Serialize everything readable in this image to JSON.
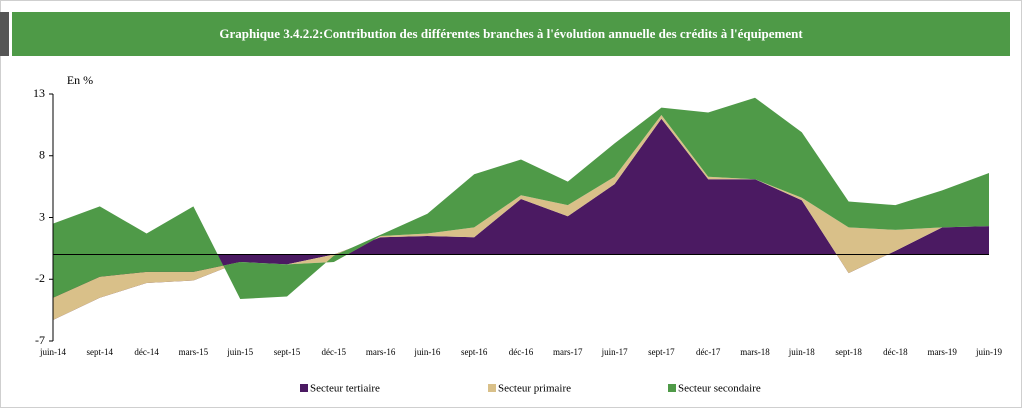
{
  "chart_data": {
    "type": "stacked_area",
    "title": "Graphique 3.4.2.2:Contribution des différentes branches à l'évolution  annuelle des crédits à l'équipement",
    "y_label": "En %",
    "categories": [
      "juin-14",
      "sept-14",
      "déc-14",
      "mars-15",
      "juin-15",
      "sept-15",
      "déc-15",
      "mars-16",
      "juin-16",
      "sept-16",
      "déc-16",
      "mars-17",
      "juin-17",
      "sept-17",
      "déc-17",
      "mars-18",
      "juin-18",
      "sept-18",
      "déc-18",
      "mars-19",
      "juin-19"
    ],
    "series": [
      {
        "name": "Secteur tertiaire",
        "color": "#4b1a62",
        "values": [
          -5.3,
          -3.5,
          -2.3,
          -2.1,
          -0.6,
          -0.8,
          0,
          1.4,
          1.5,
          1.4,
          4.5,
          3.1,
          5.7,
          11.0,
          6.1,
          6.1,
          4.4,
          -1.5,
          0.3,
          2.2,
          2.3
        ]
      },
      {
        "name": "Secteur primaire",
        "color": "#d9c089",
        "values": [
          1.8,
          1.7,
          0.9,
          0.7,
          0,
          0,
          -0.6,
          0.1,
          0.2,
          0.8,
          0.3,
          0.9,
          0.6,
          0.3,
          0.2,
          0,
          0.2,
          3.7,
          1.7,
          0,
          0
        ]
      },
      {
        "name": "Secteur secondaire",
        "color": "#4f9a48",
        "values": [
          6.0,
          5.7,
          3.1,
          5.3,
          -3.0,
          -2.6,
          0.5,
          0.1,
          1.6,
          4.3,
          2.9,
          1.9,
          2.7,
          0.6,
          5.2,
          6.6,
          5.3,
          2.1,
          2.0,
          3.0,
          4.3
        ]
      }
    ],
    "ylim": [
      -7,
      13
    ],
    "yticks": [
      -7,
      -2,
      3,
      8,
      13
    ],
    "grid": false,
    "legend": "bottom"
  }
}
